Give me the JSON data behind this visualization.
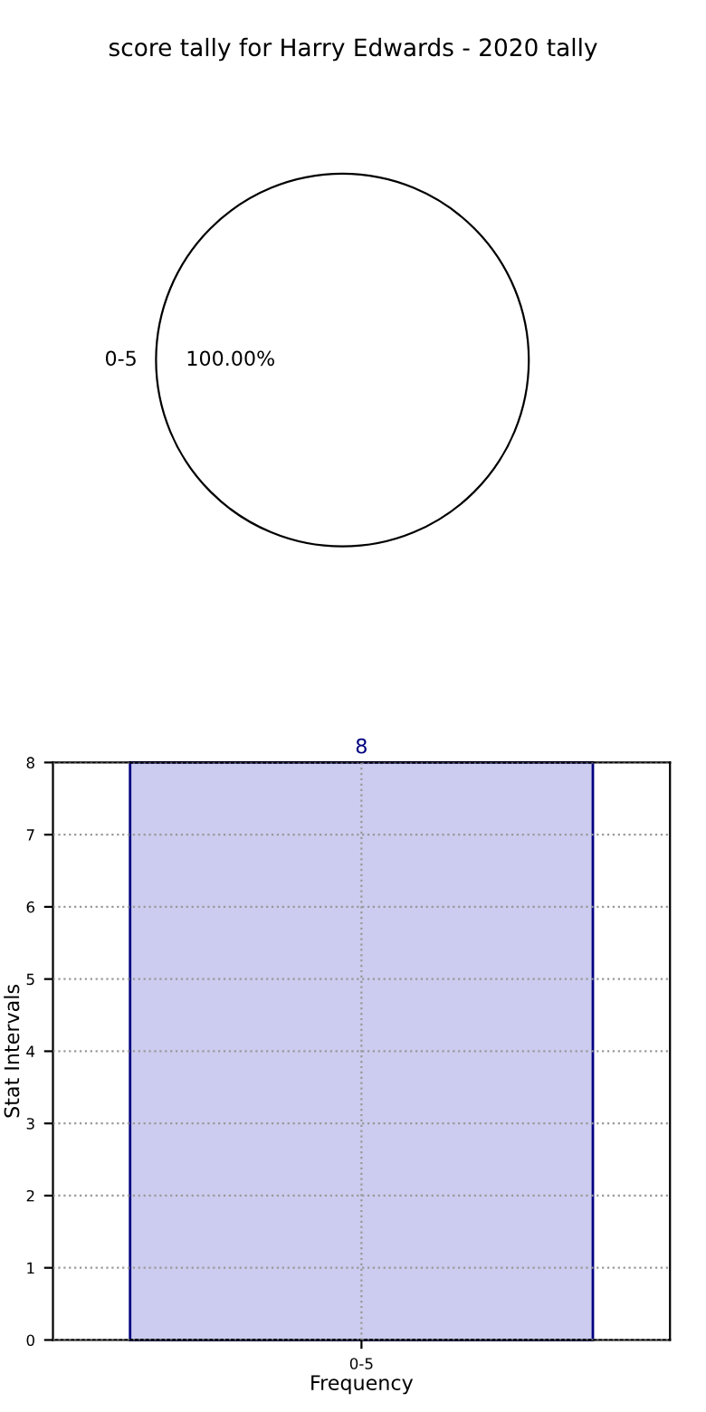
{
  "chart_data": [
    {
      "type": "pie",
      "title": "score tally for Harry Edwards - 2020 tally",
      "categories": [
        "0-5"
      ],
      "values": [
        100
      ],
      "colors": [
        "#ffffff"
      ],
      "value_labels": [
        "100.00%"
      ]
    },
    {
      "type": "bar",
      "categories": [
        "0-5"
      ],
      "values": [
        8
      ],
      "color": "#ccccf0",
      "ylim": [
        0,
        8
      ],
      "yticks": [
        0,
        1,
        2,
        3,
        4,
        5,
        6,
        7,
        8
      ],
      "grid": true,
      "data_labels": true,
      "xlabel": "Frequency",
      "ylabel": "Stat Intervals"
    }
  ]
}
